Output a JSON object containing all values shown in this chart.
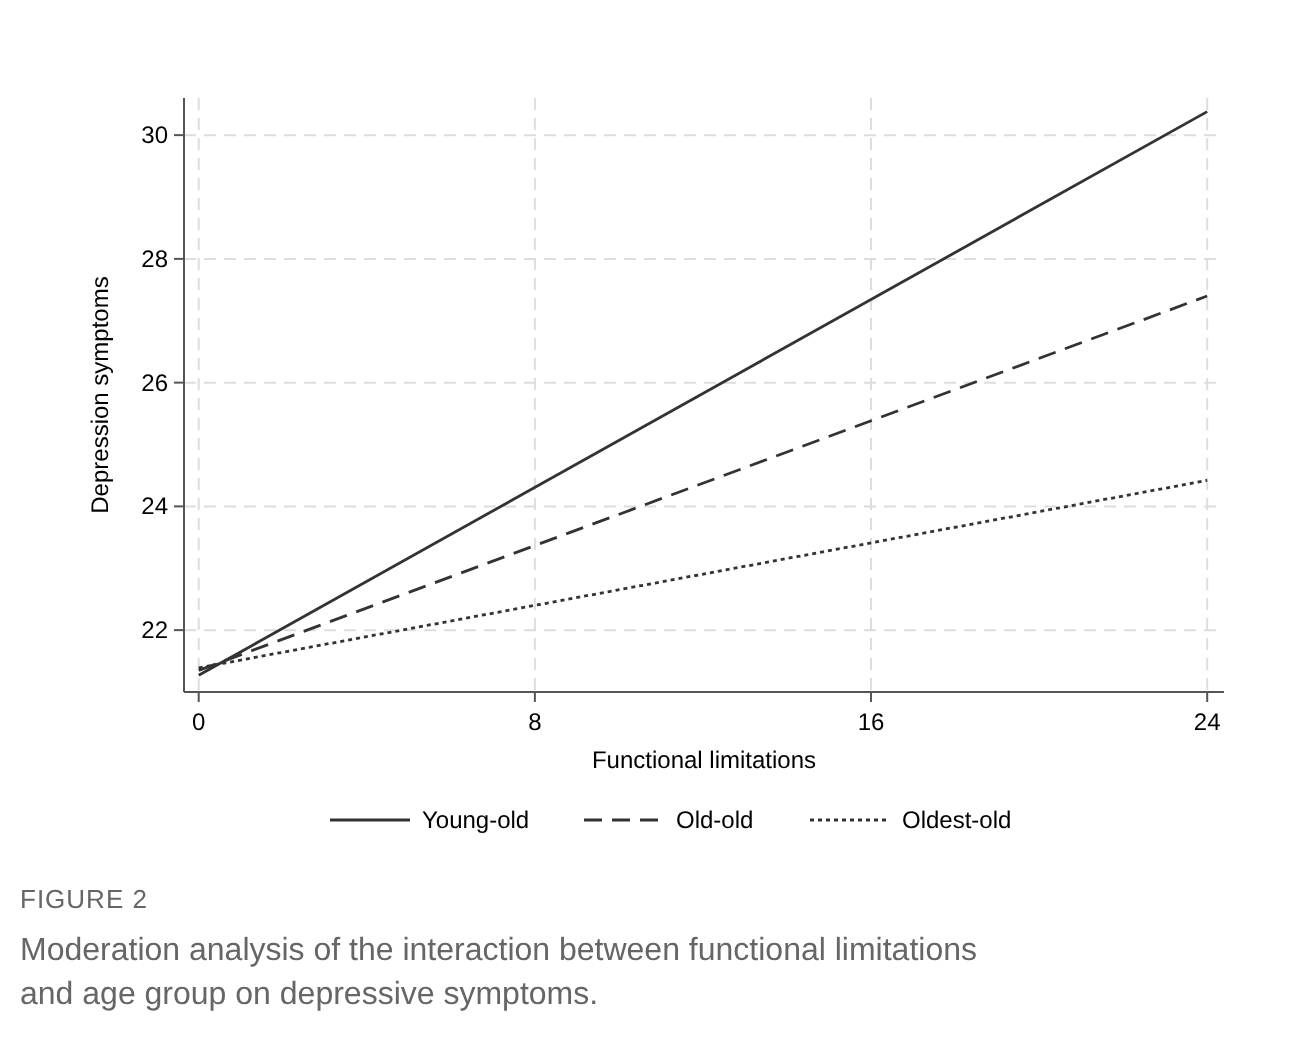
{
  "chart_data": {
    "type": "line",
    "xlabel": "Functional limitations",
    "ylabel": "Depression symptoms",
    "xlim": [
      -0.35,
      24.4
    ],
    "ylim": [
      21,
      30.6
    ],
    "xticks": [
      0,
      8,
      16,
      24
    ],
    "yticks": [
      22,
      24,
      26,
      28,
      30
    ],
    "grid": true,
    "legend": "bottom",
    "marker": "none",
    "x": [
      0,
      24
    ],
    "series": [
      {
        "name": "Young-old",
        "color": "#333333",
        "values": [
          21.27,
          30.38
        ],
        "line_style": "solid"
      },
      {
        "name": "Old-old",
        "color": "#333333",
        "values": [
          21.35,
          27.4
        ],
        "line_style": "dashed"
      },
      {
        "name": "Oldest-old",
        "color": "#333333",
        "values": [
          21.39,
          24.42
        ],
        "line_style": "dotted"
      }
    ],
    "annotations": [
      "FIGURE 2",
      "Moderation analysis of the interaction between functional limitations and age group on depressive symptoms."
    ]
  }
}
